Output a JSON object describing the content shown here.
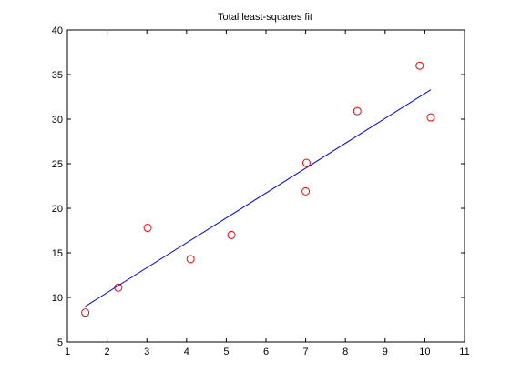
{
  "chart_data": {
    "type": "scatter",
    "title": "Total least-squares fit",
    "xlabel": "",
    "ylabel": "",
    "xlim": [
      1,
      11
    ],
    "ylim": [
      5,
      40
    ],
    "xticks": [
      1,
      2,
      3,
      4,
      5,
      6,
      7,
      8,
      9,
      10,
      11
    ],
    "yticks": [
      5,
      10,
      15,
      20,
      25,
      30,
      35,
      40
    ],
    "grid": false,
    "series": [
      {
        "kind": "scatter",
        "marker": "circle-open",
        "color": "#ff0000",
        "x": [
          1.45,
          2.28,
          3.02,
          4.1,
          5.13,
          7.0,
          7.02,
          8.3,
          9.87,
          10.15
        ],
        "y": [
          8.3,
          11.1,
          17.8,
          14.3,
          17.0,
          21.9,
          25.1,
          30.9,
          36.0,
          30.2
        ]
      },
      {
        "kind": "line",
        "color": "#0000ff",
        "x": [
          1.45,
          10.15
        ],
        "y": [
          9.0,
          33.3
        ]
      }
    ]
  }
}
